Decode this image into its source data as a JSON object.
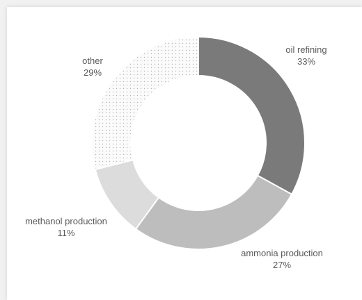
{
  "chart_data": {
    "type": "pie",
    "style": "donut",
    "title": "",
    "categories": [
      "oil refining",
      "ammonia production",
      "methanol production",
      "other"
    ],
    "values": [
      33,
      27,
      11,
      29
    ],
    "value_labels": [
      "33%",
      "27%",
      "11%",
      "29%"
    ],
    "colors": [
      "#7a7a7a",
      "#bdbdbd",
      "#dcdcdc",
      "#f6f6f6"
    ],
    "patterns": [
      "solid",
      "solid",
      "solid",
      "dotted"
    ],
    "start": "top, clockwise",
    "legend": "none"
  }
}
